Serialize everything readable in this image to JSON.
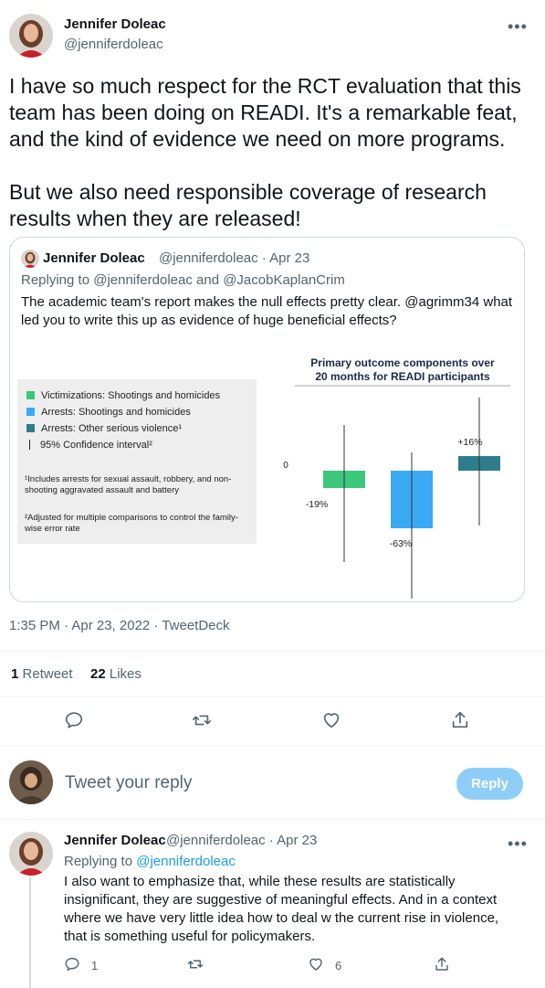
{
  "tweet": {
    "author_name": "Jennifer Doleac",
    "author_handle": "@jenniferdoleac",
    "text": "I have so much respect for the RCT evaluation that this team has been doing on READI. It's a remarkable feat, and the kind of evidence we need on more programs.\n\nBut we also need responsible coverage of research results when they are released!",
    "timestamp": "1:35 PM · Apr 23, 2022 · TweetDeck",
    "retweet_count": "1",
    "retweet_label": "Retweet",
    "like_count": "22",
    "like_label": "Likes"
  },
  "quote": {
    "author_name": "Jennifer Doleac",
    "author_handle_date": "@jenniferdoleac · Apr 23",
    "replying": "Replying to @jenniferdoleac and @JacobKaplanCrim",
    "text": "The academic team's report makes the null effects pretty clear. @agrimm34 what led you to write this up as evidence of huge beneficial effects?",
    "legend": [
      {
        "label": "Victimizations: Shootings and homicides",
        "color": "#3cc77a"
      },
      {
        "label": "Arrests: Shootings and homicides",
        "color": "#3aaaf5"
      },
      {
        "label": "Arrests: Other serious violence¹",
        "color": "#2e7d8c"
      },
      {
        "label": "95% Confidence interval²",
        "color": "#222222"
      }
    ],
    "footnote1": "¹Includes arrests for sexual assault, robbery, and non-shooting aggravated assault and battery",
    "footnote2": "²Adjusted for multiple comparisons to control the family-wise error rate"
  },
  "chart_data": {
    "type": "bar",
    "title": "Primary outcome components over 20 months for READI participants",
    "categories": [
      "Victimizations: Shootings and homicides",
      "Arrests: Shootings and homicides",
      "Arrests: Other serious violence¹"
    ],
    "values": [
      -19,
      -63,
      16
    ],
    "value_labels": [
      "-19%",
      "-63%",
      "+16%"
    ],
    "ci_low": [
      -100,
      -140,
      -60
    ],
    "ci_high": [
      50,
      20,
      80
    ],
    "colors": [
      "#3cc77a",
      "#3aaaf5",
      "#2e7d8c"
    ],
    "y_tick_label": "0",
    "ylim": [
      -145,
      85
    ],
    "grid": false
  },
  "composer": {
    "placeholder": "Tweet your reply",
    "button_label": "Reply"
  },
  "reply": {
    "author_name": "Jennifer Doleac",
    "author_handle_date": "@jenniferdoleac · Apr 23",
    "replying_prefix": "Replying to",
    "replying_handle": "@jenniferdoleac",
    "text": "I also want to emphasize that, while these results are statistically insignificant, they are suggestive of meaningful effects. And in a context where we have very little idea how to deal w the current rise in violence, that is something useful for policymakers.",
    "reply_count": "1",
    "like_count": "6"
  },
  "icons": {
    "reply": "reply-icon",
    "retweet": "retweet-icon",
    "like": "heart-icon",
    "share": "share-icon",
    "more": "more-icon"
  }
}
